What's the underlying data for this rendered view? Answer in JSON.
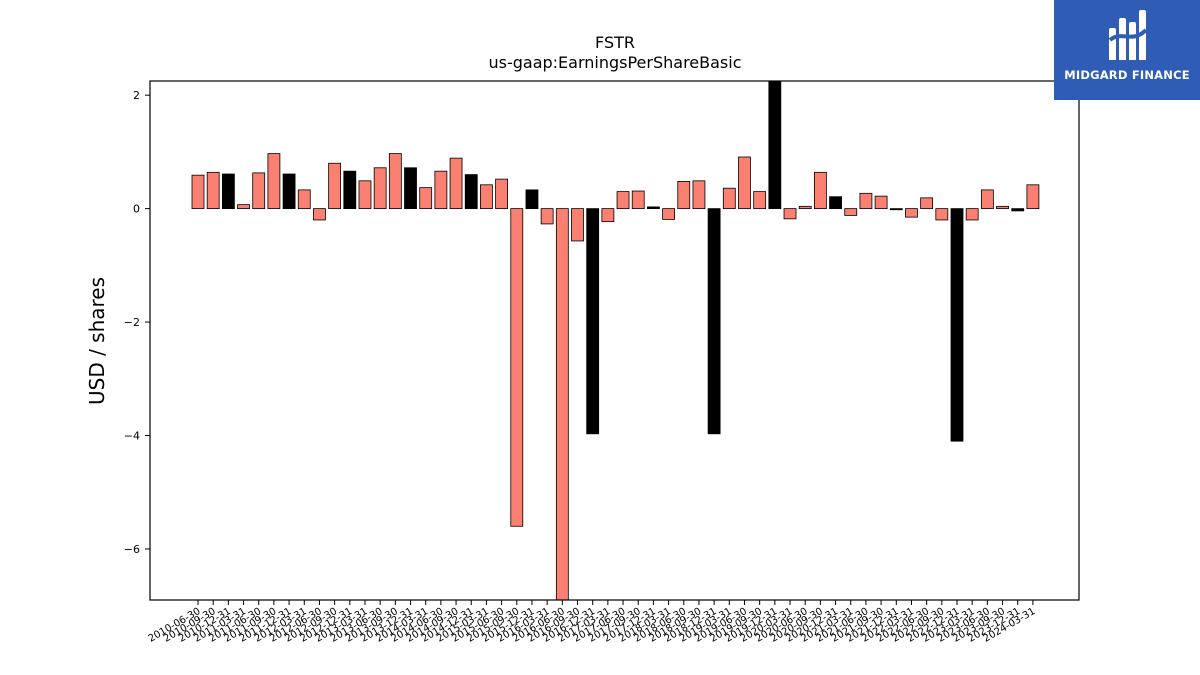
{
  "chart_data": {
    "type": "bar",
    "title": "FSTR",
    "subtitle": "us-gaap:EarningsPerShareBasic",
    "xlabel": "",
    "ylabel": "USD / shares",
    "ylim": [
      -6.9,
      2.25
    ],
    "yticks": [
      -6,
      -4,
      -2,
      0,
      2
    ],
    "ytick_labels": [
      "−6",
      "−4",
      "−2",
      "0",
      "2"
    ],
    "grid": false,
    "colors": {
      "quarterly": "#fa8072",
      "annual": "#000000"
    },
    "categories": [
      "2010-06-30",
      "2010-09-30",
      "2010-12-31",
      "2011-03-31",
      "2011-06-30",
      "2011-09-30",
      "2011-12-31",
      "2012-03-31",
      "2012-06-30",
      "2012-09-30",
      "2012-12-31",
      "2013-03-31",
      "2013-06-30",
      "2013-09-30",
      "2013-12-31",
      "2014-03-31",
      "2014-06-30",
      "2014-09-30",
      "2014-12-31",
      "2015-03-31",
      "2015-06-30",
      "2015-09-30",
      "2015-12-31",
      "2016-03-31",
      "2016-06-30",
      "2016-09-30",
      "2016-12-31",
      "2017-03-31",
      "2017-06-30",
      "2017-09-30",
      "2017-12-31",
      "2018-03-31",
      "2018-06-30",
      "2018-09-30",
      "2018-12-31",
      "2019-03-31",
      "2019-06-30",
      "2019-09-30",
      "2019-12-31",
      "2020-03-31",
      "2020-06-30",
      "2020-09-30",
      "2020-12-31",
      "2021-03-31",
      "2021-06-30",
      "2021-09-30",
      "2021-12-31",
      "2022-03-31",
      "2022-06-30",
      "2022-09-30",
      "2022-12-31",
      "2023-03-31",
      "2023-06-30",
      "2023-09-30",
      "2023-12-31",
      "2024-03-31"
    ],
    "values": [
      0.59,
      0.64,
      0.61,
      0.07,
      0.63,
      0.97,
      0.61,
      0.33,
      -0.2,
      0.8,
      0.66,
      0.49,
      0.72,
      0.97,
      0.72,
      0.37,
      0.66,
      0.89,
      0.6,
      0.42,
      0.52,
      -5.6,
      0.33,
      -0.27,
      -6.9,
      -0.57,
      -3.97,
      -0.23,
      0.3,
      0.31,
      0.03,
      -0.19,
      0.48,
      0.49,
      -3.97,
      0.36,
      0.91,
      0.3,
      2.25,
      -0.18,
      0.04,
      0.64,
      0.21,
      -0.12,
      0.27,
      0.22,
      -0.02,
      -0.15,
      0.19,
      -0.2,
      -4.1,
      -0.2,
      0.33,
      0.04,
      -0.04,
      0.42
    ],
    "annual_flags": [
      false,
      false,
      true,
      false,
      false,
      false,
      true,
      false,
      false,
      false,
      true,
      false,
      false,
      false,
      true,
      false,
      false,
      false,
      true,
      false,
      false,
      false,
      true,
      false,
      false,
      false,
      true,
      false,
      false,
      false,
      true,
      false,
      false,
      false,
      true,
      false,
      false,
      false,
      true,
      false,
      false,
      false,
      true,
      false,
      false,
      false,
      true,
      false,
      false,
      false,
      true,
      false,
      false,
      false,
      true,
      false
    ]
  },
  "logo": {
    "text": "MIDGARD FINANCE"
  }
}
